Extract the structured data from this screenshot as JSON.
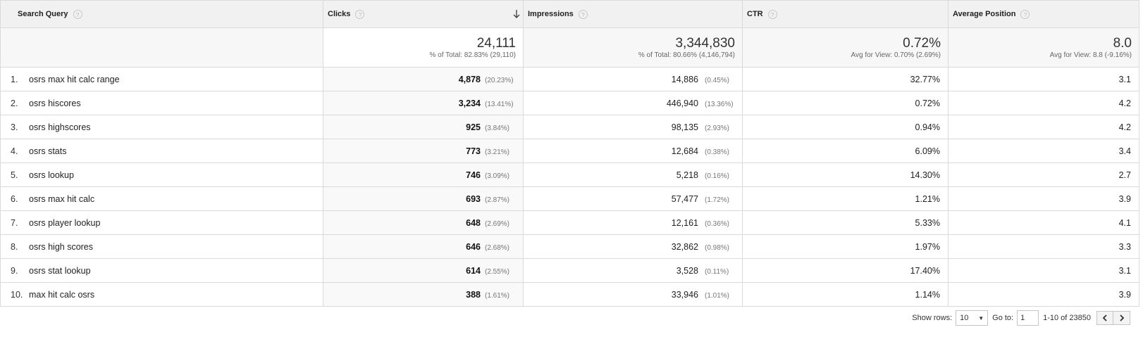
{
  "columns": {
    "query": "Search Query",
    "clicks": "Clicks",
    "impressions": "Impressions",
    "ctr": "CTR",
    "position": "Average Position",
    "help": "?"
  },
  "totals": {
    "clicks": "24,111",
    "clicks_sub": "% of Total: 82.83% (29,110)",
    "impressions": "3,344,830",
    "impressions_sub": "% of Total: 80.66% (4,146,794)",
    "ctr": "0.72%",
    "ctr_sub": "Avg for View: 0.70% (2.69%)",
    "position": "8.0",
    "position_sub": "Avg for View: 8.8 (-9.16%)"
  },
  "rows": [
    {
      "num": "1.",
      "query": "osrs max hit calc range",
      "clicks": "4,878",
      "clicks_pct": "(20.23%)",
      "impressions": "14,886",
      "impressions_pct": "(0.45%)",
      "ctr": "32.77%",
      "position": "3.1"
    },
    {
      "num": "2.",
      "query": "osrs hiscores",
      "clicks": "3,234",
      "clicks_pct": "(13.41%)",
      "impressions": "446,940",
      "impressions_pct": "(13.36%)",
      "ctr": "0.72%",
      "position": "4.2"
    },
    {
      "num": "3.",
      "query": "osrs highscores",
      "clicks": "925",
      "clicks_pct": "(3.84%)",
      "impressions": "98,135",
      "impressions_pct": "(2.93%)",
      "ctr": "0.94%",
      "position": "4.2"
    },
    {
      "num": "4.",
      "query": "osrs stats",
      "clicks": "773",
      "clicks_pct": "(3.21%)",
      "impressions": "12,684",
      "impressions_pct": "(0.38%)",
      "ctr": "6.09%",
      "position": "3.4"
    },
    {
      "num": "5.",
      "query": "osrs lookup",
      "clicks": "746",
      "clicks_pct": "(3.09%)",
      "impressions": "5,218",
      "impressions_pct": "(0.16%)",
      "ctr": "14.30%",
      "position": "2.7"
    },
    {
      "num": "6.",
      "query": "osrs max hit calc",
      "clicks": "693",
      "clicks_pct": "(2.87%)",
      "impressions": "57,477",
      "impressions_pct": "(1.72%)",
      "ctr": "1.21%",
      "position": "3.9"
    },
    {
      "num": "7.",
      "query": "osrs player lookup",
      "clicks": "648",
      "clicks_pct": "(2.69%)",
      "impressions": "12,161",
      "impressions_pct": "(0.36%)",
      "ctr": "5.33%",
      "position": "4.1"
    },
    {
      "num": "8.",
      "query": "osrs high scores",
      "clicks": "646",
      "clicks_pct": "(2.68%)",
      "impressions": "32,862",
      "impressions_pct": "(0.98%)",
      "ctr": "1.97%",
      "position": "3.3"
    },
    {
      "num": "9.",
      "query": "osrs stat lookup",
      "clicks": "614",
      "clicks_pct": "(2.55%)",
      "impressions": "3,528",
      "impressions_pct": "(0.11%)",
      "ctr": "17.40%",
      "position": "3.1"
    },
    {
      "num": "10.",
      "query": "max hit calc osrs",
      "clicks": "388",
      "clicks_pct": "(1.61%)",
      "impressions": "33,946",
      "impressions_pct": "(1.01%)",
      "ctr": "1.14%",
      "position": "3.9"
    }
  ],
  "pager": {
    "show_rows_label": "Show rows:",
    "show_rows_value": "10",
    "goto_label": "Go to:",
    "goto_value": "1",
    "range": "1-10 of 23850"
  },
  "icons": {
    "sort": "arrow-down-icon",
    "prev": "chevron-left-icon",
    "next": "chevron-right-icon"
  }
}
